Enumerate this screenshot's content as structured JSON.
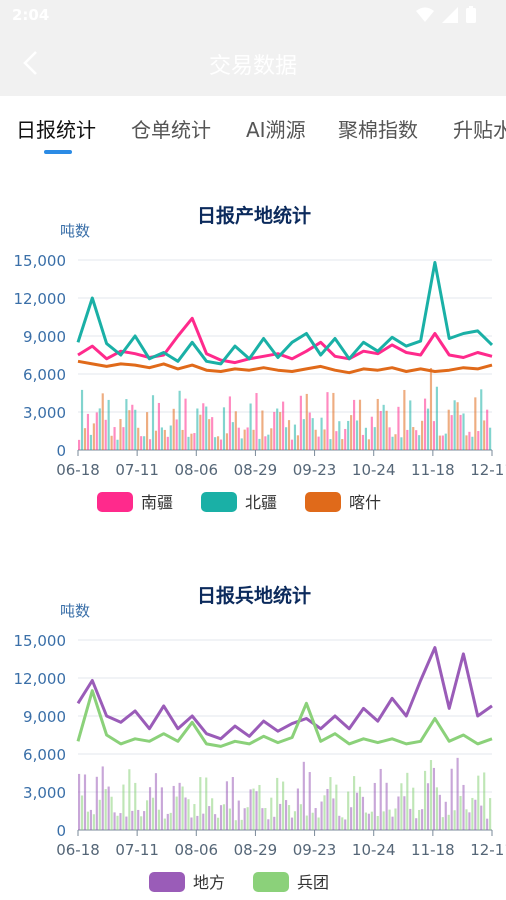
{
  "status_bar": {
    "time": "2:04",
    "icons": [
      "wifi-icon",
      "signal-icon",
      "battery-icon"
    ]
  },
  "app_bar": {
    "title": "交易数据",
    "back_icon": "back-chevron-icon"
  },
  "tabs": [
    {
      "label": "日报统计",
      "active": true
    },
    {
      "label": "仓单统计",
      "active": false
    },
    {
      "label": "AI溯源",
      "active": false
    },
    {
      "label": "聚棉指数",
      "active": false
    },
    {
      "label": "升贴水",
      "active": false
    }
  ],
  "colors": {
    "nanjiang": "#ff2a8c",
    "beijiang": "#1ab0a6",
    "kashi": "#e06a1a",
    "difang": "#9a5cb8",
    "bingtuan": "#8bd17a",
    "title": "#0b2a5c",
    "axis_text": "#3a6fa8"
  },
  "chart_data": [
    {
      "type": "line",
      "title": "日报产地统计",
      "ylabel": "吨数",
      "ylim": [
        0,
        15000
      ],
      "yticks": [
        "0",
        "3,000",
        "6,000",
        "9,000",
        "12,000",
        "15,000"
      ],
      "xticks": [
        "06-18",
        "07-11",
        "08-06",
        "08-29",
        "09-23",
        "10-24",
        "11-18",
        "12-11"
      ],
      "legend_placement": "bottom",
      "series": [
        {
          "name": "南疆",
          "color": "#ff2a8c",
          "values": [
            7500,
            8200,
            7200,
            7800,
            7600,
            7300,
            7500,
            9000,
            10400,
            7600,
            7100,
            6900,
            7200,
            7400,
            7600,
            7200,
            7800,
            8500,
            7400,
            7200,
            7800,
            7600,
            8300,
            7700,
            7500,
            9200,
            7500,
            7300,
            7700,
            7400
          ]
        },
        {
          "name": "北疆",
          "color": "#1ab0a6",
          "values": [
            8500,
            12000,
            8400,
            7500,
            9000,
            7200,
            7700,
            7000,
            8500,
            7000,
            6800,
            8200,
            7200,
            8800,
            7300,
            8500,
            9200,
            7500,
            8800,
            7200,
            8500,
            7800,
            8900,
            8200,
            8600,
            14800,
            8800,
            9200,
            9400,
            8300
          ]
        },
        {
          "name": "喀什",
          "color": "#e06a1a",
          "values": [
            7000,
            6800,
            6600,
            6800,
            6700,
            6500,
            6800,
            6400,
            6700,
            6300,
            6200,
            6400,
            6300,
            6500,
            6300,
            6200,
            6400,
            6600,
            6300,
            6100,
            6400,
            6300,
            6500,
            6200,
            6400,
            6200,
            6300,
            6500,
            6400,
            6700
          ]
        }
      ]
    },
    {
      "type": "line",
      "title": "日报兵地统计",
      "ylabel": "吨数",
      "ylim": [
        0,
        15000
      ],
      "yticks": [
        "0",
        "3,000",
        "6,000",
        "9,000",
        "12,000",
        "15,000"
      ],
      "xticks": [
        "06-18",
        "07-11",
        "08-06",
        "08-29",
        "09-23",
        "10-24",
        "11-18",
        "12-11"
      ],
      "legend_placement": "bottom",
      "series": [
        {
          "name": "地方",
          "color": "#9a5cb8",
          "values": [
            10000,
            11800,
            9000,
            8500,
            9400,
            8000,
            9800,
            8000,
            9000,
            7600,
            7200,
            8200,
            7400,
            8600,
            7800,
            8400,
            8800,
            8000,
            9000,
            8000,
            9600,
            8600,
            10400,
            9000,
            11800,
            14400,
            9600,
            13900,
            9000,
            9800
          ]
        },
        {
          "name": "兵团",
          "color": "#8bd17a",
          "values": [
            7000,
            11000,
            7500,
            6800,
            7200,
            7000,
            7600,
            7000,
            8500,
            6800,
            6600,
            7000,
            6800,
            7400,
            6900,
            7300,
            10000,
            7000,
            7600,
            6800,
            7200,
            6900,
            7200,
            6800,
            7000,
            8800,
            7000,
            7500,
            6800,
            7200
          ]
        }
      ]
    }
  ]
}
